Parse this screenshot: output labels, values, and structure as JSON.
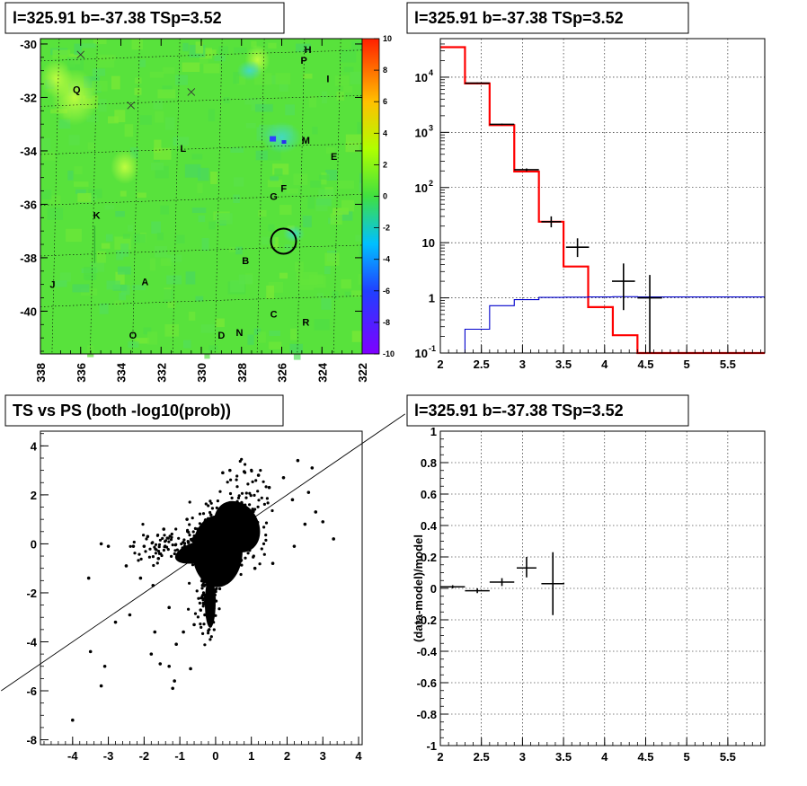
{
  "chart_data": [
    {
      "type": "heatmap",
      "title": "l=325.91 b=-37.38 TSp=3.52",
      "xlim": [
        338,
        322
      ],
      "ylim": [
        -41.6,
        -29.8
      ],
      "x_ticks": [
        "338",
        "336",
        "334",
        "332",
        "330",
        "328",
        "326",
        "324",
        "322"
      ],
      "y_ticks": [
        "-30",
        "-32",
        "-34",
        "-36",
        "-38",
        "-40"
      ],
      "colorbar": {
        "range": [
          -10,
          10
        ],
        "ticks": [
          "10",
          "8",
          "6",
          "4",
          "2",
          "0",
          "-2",
          "-4",
          "-6",
          "-8",
          "-10"
        ]
      },
      "source_labels": [
        {
          "text": "H",
          "l": 324.7,
          "b": -30.2
        },
        {
          "text": "P",
          "l": 324.9,
          "b": -30.6
        },
        {
          "text": "I",
          "l": 323.7,
          "b": -31.3
        },
        {
          "text": "Q",
          "l": 336.2,
          "b": -31.7
        },
        {
          "text": "M",
          "l": 324.8,
          "b": -33.6
        },
        {
          "text": "L",
          "l": 330.9,
          "b": -33.9
        },
        {
          "text": "E",
          "l": 323.4,
          "b": -34.2
        },
        {
          "text": "F",
          "l": 325.9,
          "b": -35.4
        },
        {
          "text": "G",
          "l": 326.4,
          "b": -35.7
        },
        {
          "text": "K",
          "l": 335.2,
          "b": -36.4
        },
        {
          "text": "B",
          "l": 327.8,
          "b": -38.1
        },
        {
          "text": "J",
          "l": 337.4,
          "b": -39.0
        },
        {
          "text": "A",
          "l": 332.8,
          "b": -38.9
        },
        {
          "text": "C",
          "l": 326.4,
          "b": -40.1
        },
        {
          "text": "R",
          "l": 324.8,
          "b": -40.4
        },
        {
          "text": "N",
          "l": 328.1,
          "b": -40.8
        },
        {
          "text": "D",
          "l": 329.0,
          "b": -40.9
        },
        {
          "text": "O",
          "l": 333.4,
          "b": -40.9
        }
      ],
      "markers_x": [
        {
          "l": 336.0,
          "b": -30.4
        },
        {
          "l": 333.5,
          "b": -32.3
        },
        {
          "l": 330.5,
          "b": -31.8
        }
      ],
      "circle": {
        "l": 325.91,
        "b": -37.38
      }
    },
    {
      "type": "line",
      "title": "l=325.91 b=-37.38 TSp=3.52",
      "xlim": [
        2,
        5.95
      ],
      "ylim": [
        0.1,
        50000
      ],
      "yscale": "log",
      "x_ticks": [
        "2",
        "2.5",
        "3",
        "3.5",
        "4",
        "4.5",
        "5",
        "5.5"
      ],
      "grid": true,
      "series": [
        {
          "color": "#ff0000",
          "edges": [
            2,
            2.3,
            2.6,
            2.9,
            3.2,
            3.5,
            3.8,
            4.1,
            4.4,
            5.95
          ],
          "values": [
            35000,
            7700,
            1350,
            195,
            24,
            3.7,
            0.68,
            0.21,
            0.1
          ]
        },
        {
          "color": "#0000cc",
          "edges": [
            2,
            2.3,
            2.6,
            2.9,
            3.2,
            3.5,
            3.8,
            4.1,
            4.4,
            5.95
          ],
          "values": [
            0.1,
            0.27,
            0.72,
            0.93,
            1.02,
            1.03,
            1.04,
            1.05,
            1.04
          ]
        },
        {
          "color": "#000000",
          "type": "errorbars",
          "points": [
            {
              "x": 2.45,
              "y": 7800,
              "xerr": 0.15,
              "ylo": 7600,
              "yhi": 8000
            },
            {
              "x": 2.75,
              "y": 1400,
              "xerr": 0.15,
              "ylo": 1360,
              "yhi": 1440
            },
            {
              "x": 3.05,
              "y": 210,
              "xerr": 0.15,
              "ylo": 198,
              "yhi": 222
            },
            {
              "x": 3.35,
              "y": 24,
              "xerr": 0.12,
              "ylo": 19,
              "yhi": 30
            },
            {
              "x": 3.67,
              "y": 8.3,
              "xerr": 0.14,
              "ylo": 5.5,
              "yhi": 12
            },
            {
              "x": 4.23,
              "y": 2,
              "xerr": 0.14,
              "ylo": 0.6,
              "yhi": 4.2
            },
            {
              "x": 4.55,
              "y": 1,
              "xerr": 0.15,
              "ylo": 0.1,
              "yhi": 2.6
            }
          ]
        }
      ]
    },
    {
      "type": "scatter",
      "title": "TS vs PS (both -log10(prob))",
      "xlim": [
        -4.9,
        4.1
      ],
      "ylim": [
        -8.2,
        4.6
      ],
      "x_ticks": [
        "-4",
        "-3",
        "-2",
        "-1",
        "0",
        "1",
        "2",
        "3",
        "4"
      ],
      "y_ticks": [
        "4",
        "2",
        "0",
        "-2",
        "-4",
        "-6",
        "-8"
      ],
      "diagonal": {
        "from": [
          -6,
          -6
        ],
        "to": [
          5.3,
          5.3
        ]
      },
      "points": [
        [
          -4.0,
          -7.2
        ],
        [
          -3.5,
          -4.4
        ],
        [
          -3.1,
          -5.0
        ],
        [
          -3.2,
          -5.8
        ],
        [
          -3.55,
          -1.4
        ],
        [
          -2.8,
          -3.2
        ],
        [
          -2.4,
          -2.9
        ],
        [
          -2.3,
          -0.1
        ],
        [
          -2.0,
          -0.1
        ],
        [
          -1.9,
          0.3
        ],
        [
          -1.8,
          -4.5
        ],
        [
          -1.7,
          -3.6
        ],
        [
          -1.6,
          -0.6
        ],
        [
          -1.55,
          -4.9
        ],
        [
          -1.45,
          0.6
        ],
        [
          -1.3,
          -5.0
        ],
        [
          -1.2,
          -5.9
        ],
        [
          -1.15,
          -5.6
        ],
        [
          -1.1,
          -4.1
        ],
        [
          -0.9,
          -3.6
        ],
        [
          -0.7,
          -5.1
        ],
        [
          -0.6,
          -3.3
        ],
        [
          -0.3,
          -2.9
        ],
        [
          -3.0,
          -0.1
        ],
        [
          -3.2,
          0.0
        ],
        [
          -2.5,
          -0.9
        ],
        [
          -2.1,
          -1.4
        ],
        [
          -1.75,
          -1.7
        ],
        [
          -1.3,
          -2.6
        ],
        [
          0.2,
          2.9
        ],
        [
          0.8,
          2.95
        ],
        [
          1.2,
          2.8
        ],
        [
          1.9,
          2.7
        ],
        [
          2.3,
          3.4
        ],
        [
          2.15,
          1.8
        ],
        [
          2.6,
          2.1
        ],
        [
          2.8,
          1.3
        ],
        [
          3.3,
          0.2
        ],
        [
          3.0,
          0.9
        ],
        [
          2.5,
          0.8
        ],
        [
          2.2,
          -0.1
        ],
        [
          1.6,
          -0.8
        ],
        [
          1.1,
          -1.0
        ],
        [
          0.7,
          -0.7
        ],
        [
          2.7,
          3.1
        ],
        [
          0.4,
          3.0
        ],
        [
          1.5,
          2.3
        ],
        [
          -0.5,
          0.6
        ],
        [
          -0.8,
          1.0
        ]
      ],
      "cluster_note": ""
    },
    {
      "type": "line",
      "title": "l=325.91 b=-37.38 TSp=3.52",
      "ylabel": "(data-model)/model",
      "xlim": [
        2,
        5.95
      ],
      "ylim": [
        -1,
        1
      ],
      "x_ticks": [
        "2",
        "2.5",
        "3",
        "3.5",
        "4",
        "4.5",
        "5",
        "5.5"
      ],
      "y_ticks": [
        "1",
        "0.8",
        "0.6",
        "0.4",
        "0.2",
        "0",
        "-0.2",
        "-0.4",
        "-0.6",
        "-0.8",
        "-1"
      ],
      "grid": true,
      "series": [
        {
          "color": "#000000",
          "type": "errorbars",
          "points": [
            {
              "x": 2.15,
              "y": 0.01,
              "xerr": 0.15,
              "ylo": 0.0,
              "yhi": 0.02
            },
            {
              "x": 2.45,
              "y": -0.015,
              "xerr": 0.15,
              "ylo": -0.03,
              "yhi": 0.0
            },
            {
              "x": 2.75,
              "y": 0.04,
              "xerr": 0.15,
              "ylo": 0.015,
              "yhi": 0.065
            },
            {
              "x": 3.05,
              "y": 0.13,
              "xerr": 0.12,
              "ylo": 0.07,
              "yhi": 0.2
            },
            {
              "x": 3.37,
              "y": 0.03,
              "xerr": 0.14,
              "ylo": -0.17,
              "yhi": 0.23
            }
          ]
        }
      ]
    }
  ]
}
